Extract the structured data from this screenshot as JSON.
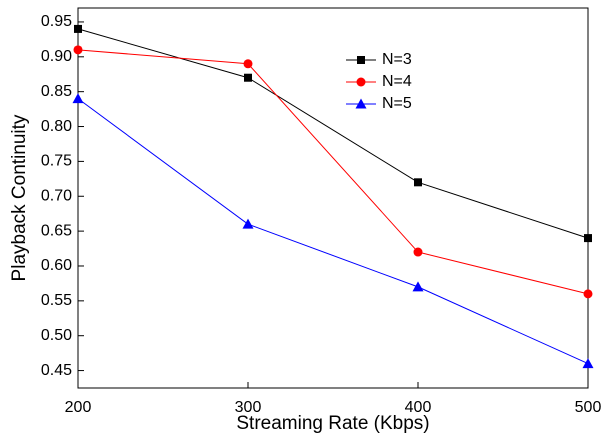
{
  "chart_data": {
    "type": "line",
    "x_label": "Streaming Rate (Kbps)",
    "y_label": "Playback Continuity",
    "x": [
      200,
      300,
      400,
      500
    ],
    "series": [
      {
        "name": "N=3",
        "color": "#000000",
        "marker": "square",
        "values": [
          0.94,
          0.87,
          0.72,
          0.64
        ]
      },
      {
        "name": "N=4",
        "color": "#ff0000",
        "marker": "circle",
        "values": [
          0.91,
          0.89,
          0.62,
          0.56
        ]
      },
      {
        "name": "N=5",
        "color": "#0000ff",
        "marker": "triangle",
        "values": [
          0.84,
          0.66,
          0.57,
          0.46
        ]
      }
    ],
    "xlim": [
      200,
      500
    ],
    "xticks": [
      200,
      300,
      400,
      500
    ],
    "ylim": [
      0.425,
      0.97
    ],
    "yticks": [
      0.45,
      {
        "value": 0.5,
        "label": "0.50"
      },
      0.55,
      {
        "value": 0.6,
        "label": "0.60"
      },
      0.65,
      {
        "value": 0.7,
        "label": "0.70"
      },
      0.75,
      {
        "value": 0.8,
        "label": "0.80"
      },
      0.85,
      {
        "value": 0.9,
        "label": "0.90"
      },
      0.95
    ],
    "grid": false,
    "legend": "top-center"
  }
}
